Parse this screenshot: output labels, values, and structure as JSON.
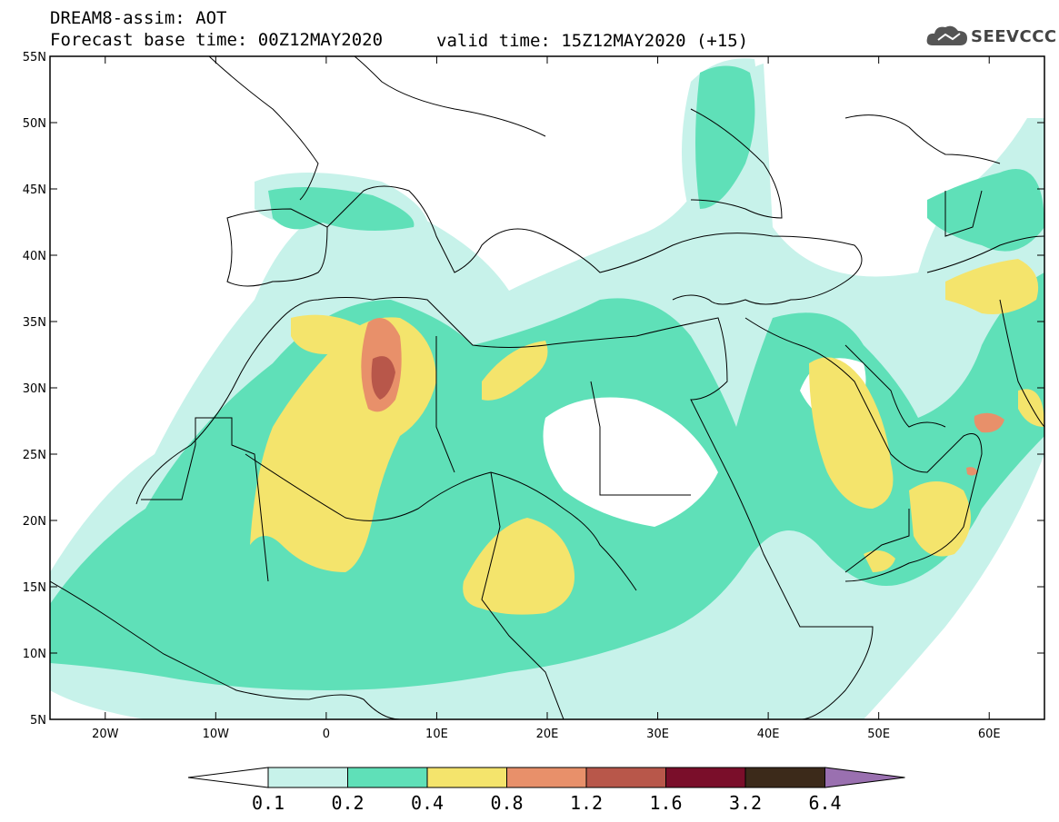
{
  "header": {
    "title": "DREAM8-assim: AOT",
    "forecast_base": "Forecast base time: 00Z12MAY2020",
    "valid_time": "valid time: 15Z12MAY2020 (+15)",
    "logo_text": "SEEVCCC"
  },
  "map": {
    "region": "North Africa / Mediterranean / Middle East",
    "lon_range": [
      -25,
      65
    ],
    "lat_range": [
      5,
      55
    ],
    "lat_ticks": [
      "55N",
      "50N",
      "45N",
      "40N",
      "35N",
      "30N",
      "25N",
      "20N",
      "15N",
      "10N",
      "5N"
    ],
    "lon_ticks": [
      "20W",
      "10W",
      "0",
      "10E",
      "20E",
      "30E",
      "40E",
      "50E",
      "60E"
    ]
  },
  "colorbar": {
    "levels": [
      "0.1",
      "0.2",
      "0.4",
      "0.8",
      "1.2",
      "1.6",
      "3.2",
      "6.4"
    ],
    "colors": [
      "#ffffff",
      "#c7f2ea",
      "#5fe0b8",
      "#f4e46c",
      "#e8906a",
      "#b8574a",
      "#7a0e2a",
      "#3c2a1a",
      "#9a70b0"
    ]
  }
}
